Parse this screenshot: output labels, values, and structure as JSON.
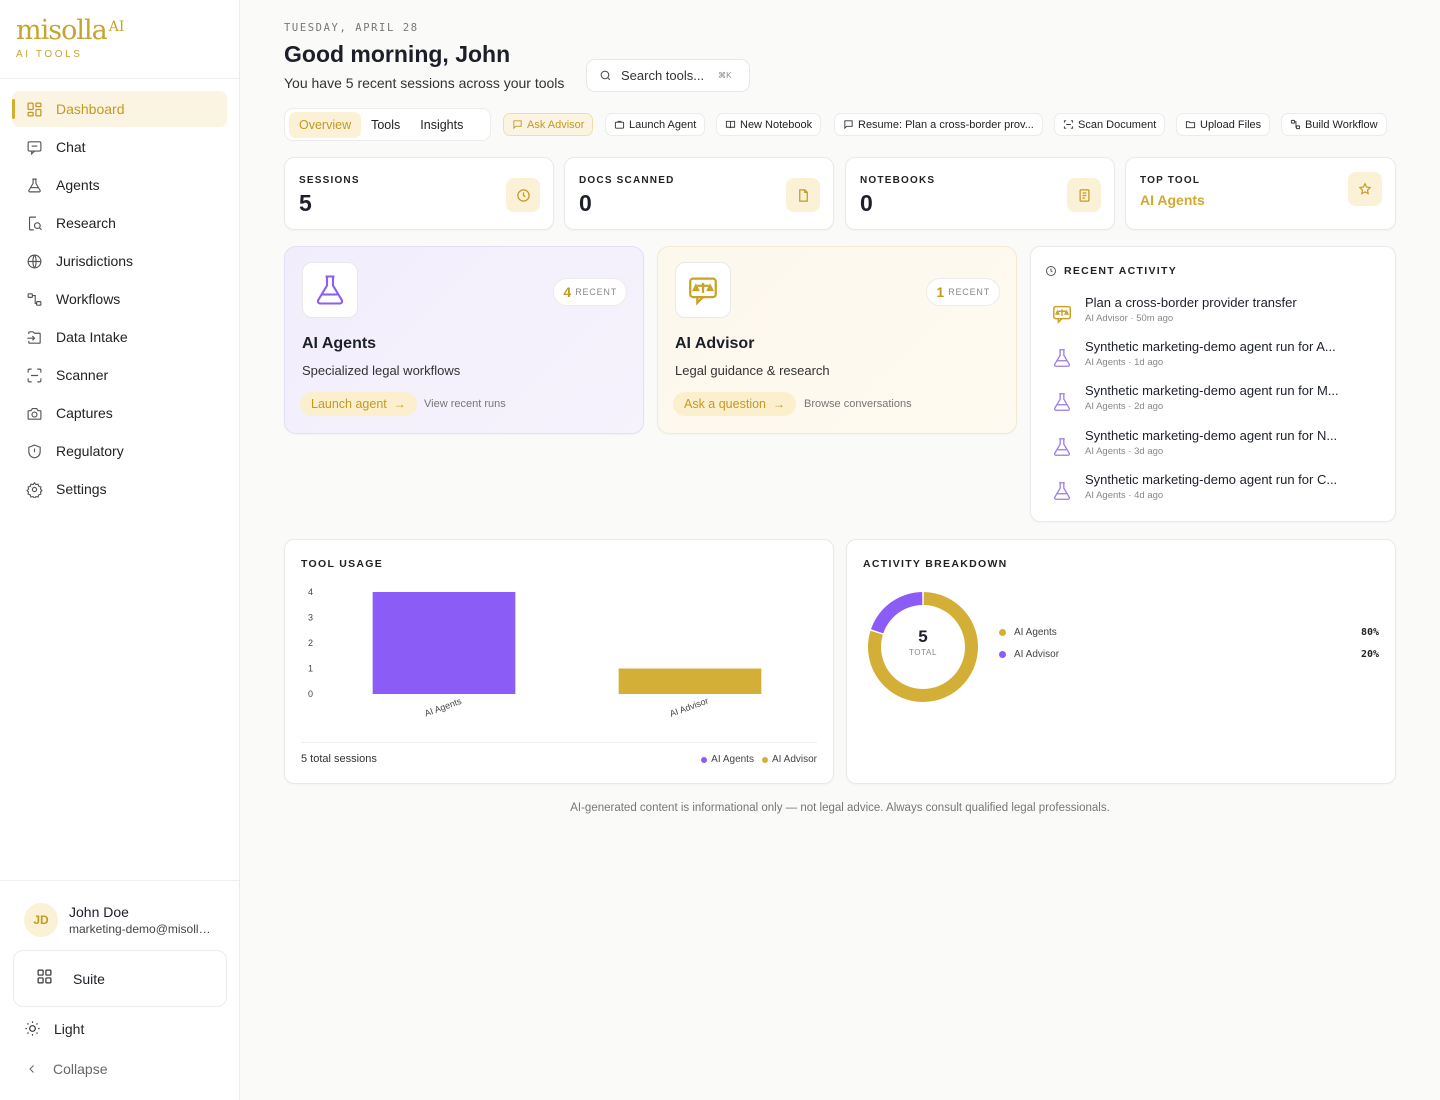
{
  "brand": {
    "name": "misolla",
    "sup": "AI",
    "tagline": "AI TOOLS"
  },
  "sidebar": {
    "items": [
      {
        "label": "Dashboard",
        "icon": "dashboard-icon"
      },
      {
        "label": "Chat",
        "icon": "chat-icon"
      },
      {
        "label": "Agents",
        "icon": "flask-icon"
      },
      {
        "label": "Research",
        "icon": "research-icon"
      },
      {
        "label": "Jurisdictions",
        "icon": "globe-icon"
      },
      {
        "label": "Workflows",
        "icon": "workflow-icon"
      },
      {
        "label": "Data Intake",
        "icon": "import-icon"
      },
      {
        "label": "Scanner",
        "icon": "scan-icon"
      },
      {
        "label": "Captures",
        "icon": "camera-icon"
      },
      {
        "label": "Regulatory",
        "icon": "shield-icon"
      },
      {
        "label": "Settings",
        "icon": "gear-icon"
      }
    ],
    "user": {
      "initials": "JD",
      "name": "John Doe",
      "email": "marketing-demo@misolla.ai"
    },
    "suite_label": "Suite",
    "theme_label": "Light",
    "collapse_label": "Collapse"
  },
  "header": {
    "date": "TUESDAY, APRIL 28",
    "greeting": "Good morning, John",
    "subtitle": "You have 5 recent sessions across your tools",
    "search_placeholder": "Search tools...",
    "search_shortcut": "⌘K"
  },
  "tabs": [
    "Overview",
    "Tools",
    "Insights"
  ],
  "quick_actions": [
    {
      "label": "Ask Advisor",
      "icon": "chat-icon"
    },
    {
      "label": "Launch Agent",
      "icon": "briefcase-icon"
    },
    {
      "label": "New Notebook",
      "icon": "book-icon"
    },
    {
      "label": "Resume: Plan a cross-border prov...",
      "icon": "message-icon"
    },
    {
      "label": "Scan Document",
      "icon": "scan-icon"
    },
    {
      "label": "Upload Files",
      "icon": "folder-icon"
    },
    {
      "label": "Build Workflow",
      "icon": "workflow-icon"
    }
  ],
  "stats": [
    {
      "label": "SESSIONS",
      "value": "5",
      "icon": "clock-icon"
    },
    {
      "label": "DOCS SCANNED",
      "value": "0",
      "icon": "file-icon"
    },
    {
      "label": "NOTEBOOKS",
      "value": "0",
      "icon": "notebook-icon"
    },
    {
      "label": "TOP TOOL",
      "value": "AI Agents",
      "icon": "star-icon"
    }
  ],
  "features": [
    {
      "count": "4",
      "recent_label": "RECENT",
      "title": "AI Agents",
      "subtitle": "Specialized legal workflows",
      "primary": "Launch agent",
      "secondary": "View recent runs",
      "icon": "flask-icon"
    },
    {
      "count": "1",
      "recent_label": "RECENT",
      "title": "AI Advisor",
      "subtitle": "Legal guidance & research",
      "primary": "Ask a question",
      "secondary": "Browse conversations",
      "icon": "advisor-icon"
    }
  ],
  "activity": {
    "title": "RECENT ACTIVITY",
    "items": [
      {
        "title": "Plan a cross-border provider transfer",
        "meta": "AI Advisor · 50m ago",
        "icon": "advisor-icon"
      },
      {
        "title": "Synthetic marketing-demo agent run for A...",
        "meta": "AI Agents · 1d ago",
        "icon": "flask-icon"
      },
      {
        "title": "Synthetic marketing-demo agent run for M...",
        "meta": "AI Agents · 2d ago",
        "icon": "flask-icon"
      },
      {
        "title": "Synthetic marketing-demo agent run for N...",
        "meta": "AI Agents · 3d ago",
        "icon": "flask-icon"
      },
      {
        "title": "Synthetic marketing-demo agent run for C...",
        "meta": "AI Agents · 4d ago",
        "icon": "flask-icon"
      }
    ]
  },
  "tool_usage": {
    "title": "TOOL USAGE",
    "footer": "5 total sessions",
    "legend": [
      "AI Agents",
      "AI Advisor"
    ]
  },
  "breakdown": {
    "title": "ACTIVITY BREAKDOWN",
    "total": "5",
    "total_label": "TOTAL",
    "items": [
      {
        "name": "AI Agents",
        "pct": "80%"
      },
      {
        "name": "AI Advisor",
        "pct": "20%"
      }
    ]
  },
  "colors": {
    "gold": "#d4af37",
    "purple": "#8b5cf6",
    "accent_text": "#c39a22"
  },
  "chart_data": [
    {
      "type": "bar",
      "title": "TOOL USAGE",
      "categories": [
        "AI Agents",
        "AI Advisor"
      ],
      "values": [
        4,
        1
      ],
      "yticks": [
        0,
        1,
        2,
        3,
        4
      ],
      "ylim": [
        0,
        4
      ],
      "colors": [
        "#8b5cf6",
        "#d4af37"
      ]
    },
    {
      "type": "pie",
      "title": "ACTIVITY BREAKDOWN",
      "labels": [
        "AI Agents",
        "AI Advisor"
      ],
      "values": [
        80,
        20
      ],
      "colors": [
        "#d4af37",
        "#8b5cf6"
      ]
    }
  ],
  "disclaimer": "AI-generated content is informational only — not legal advice. Always consult qualified legal professionals."
}
